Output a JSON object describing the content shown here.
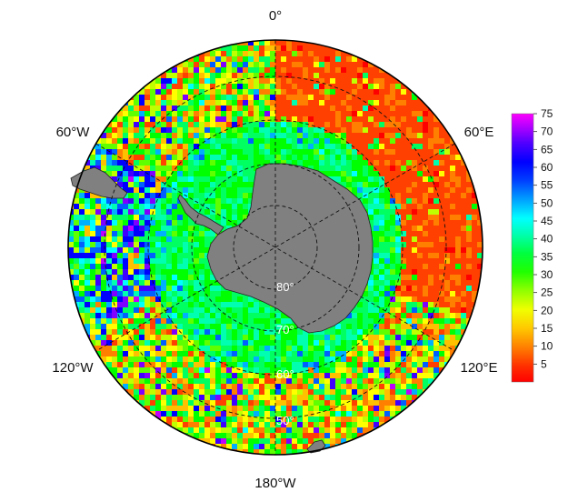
{
  "map": {
    "projection": "south-polar-stereographic",
    "longitude_labels": {
      "top": "0°",
      "upper_left": "60°W",
      "upper_right": "60°E",
      "lower_left": "120°W",
      "lower_right": "120°E",
      "bottom": "180°W"
    },
    "latitude_labels": [
      "80°",
      "70°",
      "60°",
      "50°"
    ],
    "latitude_circles_deg": [
      80,
      70,
      60,
      50
    ],
    "boundary_latitude_deg": -40,
    "graticule": "dashed",
    "land_color": "#808080"
  },
  "colorbar": {
    "min": 0,
    "max": 75,
    "ticks": [
      "5",
      "10",
      "15",
      "20",
      "25",
      "30",
      "35",
      "40",
      "45",
      "50",
      "55",
      "60",
      "65",
      "70",
      "75"
    ],
    "colormap": [
      "#ff0000",
      "#ff4000",
      "#ff8000",
      "#ffc000",
      "#ffff00",
      "#bfff00",
      "#60ff00",
      "#00ff00",
      "#00ff60",
      "#00ffb0",
      "#00ffff",
      "#00b0ff",
      "#0060ff",
      "#0000ff",
      "#4000ff",
      "#8000ff",
      "#c000ff",
      "#ff00ff"
    ]
  }
}
